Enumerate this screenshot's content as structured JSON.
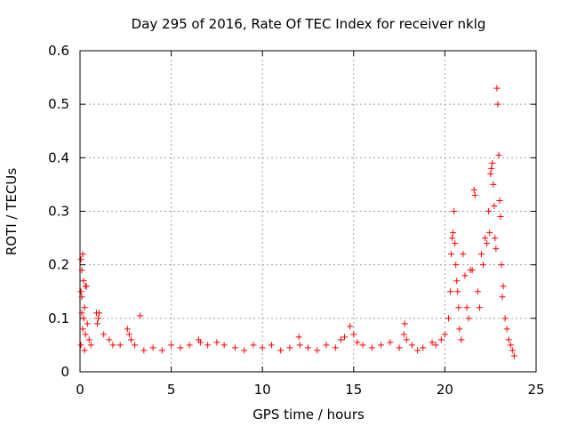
{
  "chart_data": {
    "type": "scatter",
    "title": "Day 295 of 2016, Rate Of TEC Index for receiver nklg",
    "xlabel": "GPS time / hours",
    "ylabel": "ROTI / TECUs",
    "xlim": [
      0,
      25
    ],
    "ylim": [
      0,
      0.6
    ],
    "xticks": [
      0,
      5,
      10,
      15,
      20,
      25
    ],
    "yticks": [
      0,
      0.1,
      0.2,
      0.3,
      0.4,
      0.5,
      0.6
    ],
    "xtick_labels": [
      "0",
      "5",
      "10",
      "15",
      "20",
      "25"
    ],
    "ytick_labels": [
      "0",
      "0.1",
      "0.2",
      "0.3",
      "0.4",
      "0.5",
      "0.6"
    ],
    "grid": true,
    "marker": "+",
    "color": "#ff0000",
    "series": [
      {
        "name": "ROTI",
        "points": [
          [
            0.05,
            0.21
          ],
          [
            0.1,
            0.19
          ],
          [
            0.15,
            0.22
          ],
          [
            0.05,
            0.15
          ],
          [
            0.1,
            0.14
          ],
          [
            0.2,
            0.17
          ],
          [
            0.25,
            0.12
          ],
          [
            0.3,
            0.16
          ],
          [
            0.35,
            0.16
          ],
          [
            0.1,
            0.11
          ],
          [
            0.2,
            0.1
          ],
          [
            0.4,
            0.09
          ],
          [
            0.15,
            0.08
          ],
          [
            0.3,
            0.07
          ],
          [
            0.5,
            0.06
          ],
          [
            0.6,
            0.05
          ],
          [
            0.05,
            0.05
          ],
          [
            0.25,
            0.04
          ],
          [
            0.9,
            0.11
          ],
          [
            1.0,
            0.1
          ],
          [
            1.05,
            0.11
          ],
          [
            0.95,
            0.09
          ],
          [
            1.3,
            0.07
          ],
          [
            1.6,
            0.06
          ],
          [
            1.8,
            0.05
          ],
          [
            2.2,
            0.05
          ],
          [
            2.6,
            0.08
          ],
          [
            2.7,
            0.07
          ],
          [
            2.8,
            0.06
          ],
          [
            3.0,
            0.05
          ],
          [
            3.3,
            0.105
          ],
          [
            3.5,
            0.04
          ],
          [
            4.0,
            0.045
          ],
          [
            4.5,
            0.04
          ],
          [
            5.0,
            0.05
          ],
          [
            5.5,
            0.045
          ],
          [
            6.0,
            0.05
          ],
          [
            6.5,
            0.06
          ],
          [
            6.6,
            0.055
          ],
          [
            7.0,
            0.05
          ],
          [
            7.5,
            0.055
          ],
          [
            7.9,
            0.05
          ],
          [
            8.5,
            0.045
          ],
          [
            9.0,
            0.04
          ],
          [
            9.5,
            0.05
          ],
          [
            10.0,
            0.045
          ],
          [
            10.5,
            0.05
          ],
          [
            11.0,
            0.04
          ],
          [
            11.5,
            0.045
          ],
          [
            12.0,
            0.065
          ],
          [
            12.05,
            0.05
          ],
          [
            12.5,
            0.045
          ],
          [
            13.0,
            0.04
          ],
          [
            13.5,
            0.05
          ],
          [
            14.0,
            0.045
          ],
          [
            14.3,
            0.06
          ],
          [
            14.5,
            0.065
          ],
          [
            14.8,
            0.085
          ],
          [
            15.0,
            0.07
          ],
          [
            15.2,
            0.055
          ],
          [
            15.5,
            0.05
          ],
          [
            16.0,
            0.045
          ],
          [
            16.5,
            0.05
          ],
          [
            17.0,
            0.055
          ],
          [
            17.5,
            0.045
          ],
          [
            17.8,
            0.09
          ],
          [
            17.75,
            0.07
          ],
          [
            17.9,
            0.06
          ],
          [
            18.2,
            0.05
          ],
          [
            18.5,
            0.04
          ],
          [
            18.8,
            0.045
          ],
          [
            19.3,
            0.055
          ],
          [
            19.5,
            0.05
          ],
          [
            19.8,
            0.06
          ],
          [
            20.0,
            0.07
          ],
          [
            20.2,
            0.1
          ],
          [
            20.3,
            0.15
          ],
          [
            20.35,
            0.22
          ],
          [
            20.4,
            0.25
          ],
          [
            20.45,
            0.26
          ],
          [
            20.5,
            0.3
          ],
          [
            20.55,
            0.24
          ],
          [
            20.6,
            0.2
          ],
          [
            20.65,
            0.17
          ],
          [
            20.7,
            0.15
          ],
          [
            20.75,
            0.12
          ],
          [
            20.8,
            0.08
          ],
          [
            20.9,
            0.06
          ],
          [
            21.0,
            0.22
          ],
          [
            21.1,
            0.18
          ],
          [
            21.2,
            0.12
          ],
          [
            21.3,
            0.1
          ],
          [
            21.4,
            0.19
          ],
          [
            21.5,
            0.19
          ],
          [
            21.6,
            0.34
          ],
          [
            21.65,
            0.33
          ],
          [
            21.8,
            0.15
          ],
          [
            21.9,
            0.12
          ],
          [
            22.0,
            0.22
          ],
          [
            22.1,
            0.2
          ],
          [
            22.2,
            0.25
          ],
          [
            22.3,
            0.24
          ],
          [
            22.4,
            0.3
          ],
          [
            22.45,
            0.26
          ],
          [
            22.5,
            0.37
          ],
          [
            22.55,
            0.38
          ],
          [
            22.6,
            0.39
          ],
          [
            22.65,
            0.35
          ],
          [
            22.7,
            0.31
          ],
          [
            22.75,
            0.25
          ],
          [
            22.8,
            0.23
          ],
          [
            22.85,
            0.53
          ],
          [
            22.9,
            0.5
          ],
          [
            22.95,
            0.405
          ],
          [
            23.0,
            0.32
          ],
          [
            23.05,
            0.29
          ],
          [
            23.1,
            0.2
          ],
          [
            23.15,
            0.14
          ],
          [
            23.2,
            0.16
          ],
          [
            23.3,
            0.1
          ],
          [
            23.4,
            0.08
          ],
          [
            23.5,
            0.06
          ],
          [
            23.6,
            0.05
          ],
          [
            23.7,
            0.04
          ],
          [
            23.8,
            0.03
          ]
        ]
      }
    ]
  }
}
